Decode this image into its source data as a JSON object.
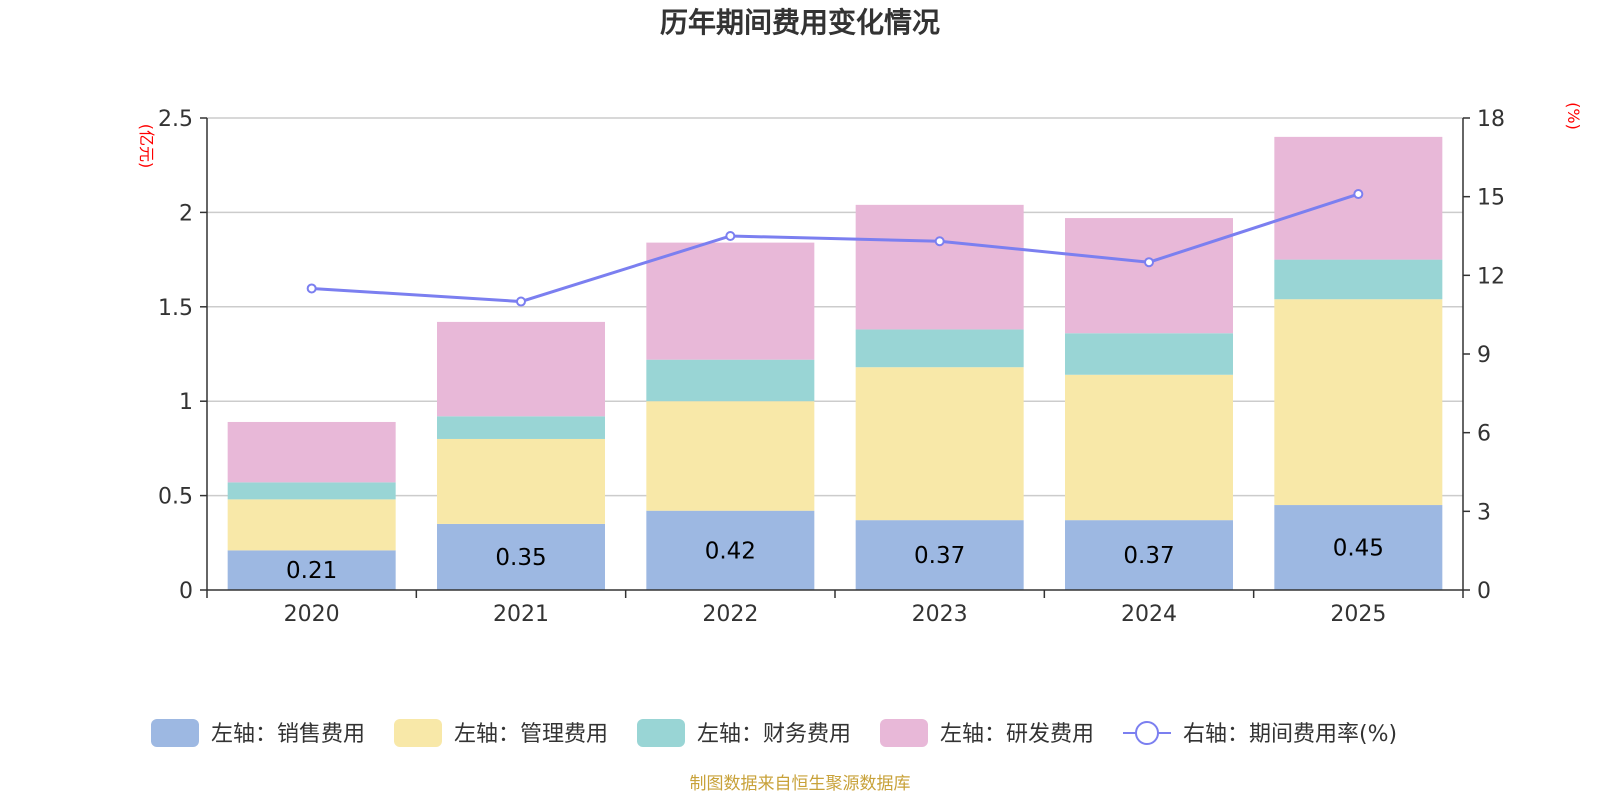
{
  "chart_data": {
    "type": "bar",
    "title": "历年期间费用变化情况",
    "categories": [
      "2020",
      "2021",
      "2022",
      "2023",
      "2024",
      "2025"
    ],
    "series": [
      {
        "name": "左轴：销售费用",
        "axis": "left",
        "color": "#9db8e2",
        "values": [
          0.21,
          0.35,
          0.42,
          0.37,
          0.37,
          0.45
        ]
      },
      {
        "name": "左轴：管理费用",
        "axis": "left",
        "color": "#f8e8a8",
        "values": [
          0.27,
          0.45,
          0.58,
          0.81,
          0.77,
          1.09
        ]
      },
      {
        "name": "左轴：财务费用",
        "axis": "left",
        "color": "#99d5d5",
        "values": [
          0.09,
          0.12,
          0.22,
          0.2,
          0.22,
          0.21
        ]
      },
      {
        "name": "左轴：研发费用",
        "axis": "left",
        "color": "#e8b8d8",
        "values": [
          0.32,
          0.5,
          0.62,
          0.66,
          0.61,
          0.65
        ]
      }
    ],
    "line_series": {
      "name": "右轴：期间费用率(%)",
      "axis": "right",
      "color": "#7b7ff0",
      "values": [
        11.5,
        11.0,
        13.5,
        13.3,
        12.5,
        15.1
      ]
    },
    "bar_labels": [
      "0.21",
      "0.35",
      "0.42",
      "0.37",
      "0.37",
      "0.45"
    ],
    "left_axis": {
      "unit": "(亿元)",
      "ylim": [
        0,
        2.5
      ],
      "ticks": [
        "0",
        "0.5",
        "1",
        "1.5",
        "2",
        "2.5"
      ],
      "tick_values": [
        0,
        0.5,
        1,
        1.5,
        2,
        2.5
      ]
    },
    "right_axis": {
      "unit": "(%)",
      "ylim": [
        0,
        18
      ],
      "ticks": [
        "0",
        "3",
        "6",
        "9",
        "12",
        "15",
        "18"
      ],
      "tick_values": [
        0,
        3,
        6,
        9,
        12,
        15,
        18
      ]
    },
    "grid": true,
    "legend_position": "bottom",
    "source": "制图数据来自恒生聚源数据库"
  }
}
